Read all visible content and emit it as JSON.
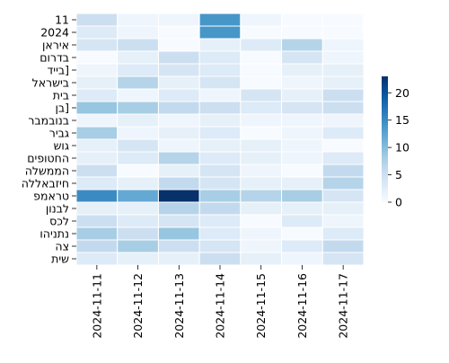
{
  "chart_data": {
    "type": "heatmap",
    "title": "",
    "xlabel": "",
    "ylabel": "",
    "x_categories": [
      "2024-11-11",
      "2024-11-12",
      "2024-11-13",
      "2024-11-14",
      "2024-11-15",
      "2024-11-16",
      "2024-11-17"
    ],
    "y_categories": [
      "11",
      "2024",
      "איראן",
      "בדרום",
      "בייד]",
      "בישראל",
      "בית",
      "בן]",
      "בנובמבר",
      "גביר",
      "גוש",
      "החטופים",
      "הממשלה",
      "חיזבאללה",
      "טראמפ",
      "לבנון",
      "לכס",
      "נתניהו",
      "צה",
      "שית"
    ],
    "values": [
      [
        5,
        1,
        1,
        14,
        1,
        0,
        0
      ],
      [
        3,
        1,
        0,
        14,
        0,
        0,
        0
      ],
      [
        4,
        5,
        0,
        2,
        3,
        7,
        1
      ],
      [
        0,
        2,
        5,
        3,
        0,
        4,
        1
      ],
      [
        1,
        3,
        4,
        3,
        0,
        2,
        2
      ],
      [
        2,
        7,
        2,
        4,
        0,
        1,
        2
      ],
      [
        3,
        1,
        3,
        1,
        4,
        2,
        5
      ],
      [
        9,
        8,
        6,
        5,
        3,
        4,
        5
      ],
      [
        1,
        2,
        1,
        2,
        1,
        1,
        1
      ],
      [
        8,
        1,
        2,
        3,
        0,
        1,
        3
      ],
      [
        2,
        4,
        1,
        2,
        2,
        1,
        0
      ],
      [
        2,
        3,
        7,
        3,
        2,
        1,
        3
      ],
      [
        5,
        0,
        2,
        4,
        1,
        0,
        6
      ],
      [
        3,
        2,
        6,
        4,
        2,
        2,
        7
      ],
      [
        15,
        12,
        23,
        8,
        7,
        8,
        4
      ],
      [
        2,
        2,
        7,
        6,
        2,
        2,
        2
      ],
      [
        5,
        3,
        4,
        3,
        0,
        3,
        1
      ],
      [
        8,
        5,
        9,
        3,
        1,
        0,
        3
      ],
      [
        6,
        8,
        5,
        4,
        1,
        3,
        6
      ],
      [
        3,
        2,
        2,
        5,
        2,
        1,
        4
      ]
    ],
    "colorbar": {
      "min": 0,
      "max": 23,
      "ticks": [
        0,
        5,
        10,
        15,
        20
      ]
    },
    "colormap": [
      "#f7fbff",
      "#deebf7",
      "#c6dbef",
      "#9ecae1",
      "#6baed6",
      "#4292c6",
      "#2171b5",
      "#08519c",
      "#08306b"
    ],
    "grid": true,
    "legend": "colorbar-right"
  }
}
